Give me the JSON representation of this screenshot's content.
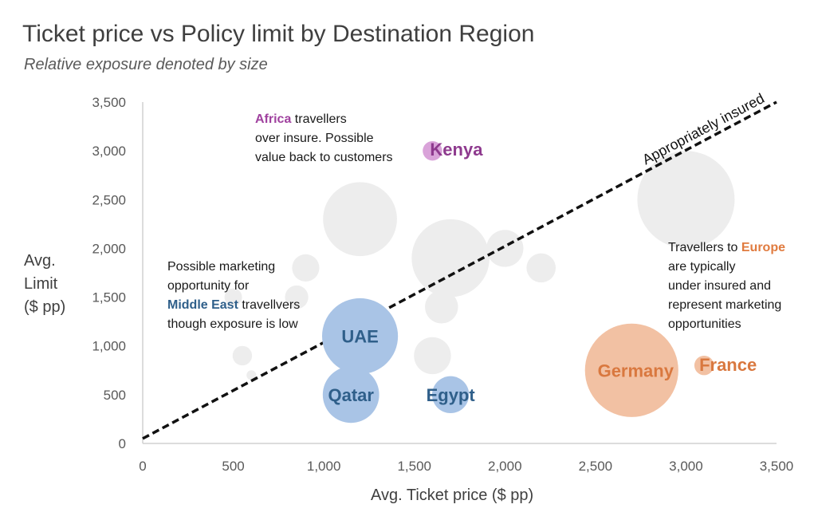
{
  "chart_data": {
    "type": "bubble",
    "title": "Ticket price vs Policy limit by Destination Region",
    "subtitle": "Relative exposure denoted by size",
    "xlabel": "Avg. Ticket price ($ pp)",
    "ylabel": [
      "Avg.",
      "Limit",
      "($ pp)"
    ],
    "xlim": [
      0,
      3500
    ],
    "ylim": [
      0,
      3500
    ],
    "x_ticks": [
      "0",
      "500",
      "1,000",
      "1,500",
      "2,000",
      "2,500",
      "3,000",
      "3,500"
    ],
    "y_ticks": [
      "0",
      "500",
      "1,000",
      "1,500",
      "2,000",
      "2,500",
      "3,000",
      "3,500"
    ],
    "grid": false,
    "colors": {
      "background_bubble": "#ededed",
      "africa": "#d9a3d9",
      "africa_text": "#8e3a8e",
      "middle_east": "#a9c4e6",
      "middle_east_text": "#2f5f8a",
      "europe": "#f2c1a3",
      "europe_text": "#d9783f"
    },
    "reference_line": {
      "label": "Appropriately insured",
      "x": [
        0,
        3500
      ],
      "y": [
        50,
        3500
      ],
      "style": "dashed"
    },
    "background_points": [
      {
        "x": 1200,
        "y": 2300,
        "size": 3.8
      },
      {
        "x": 1700,
        "y": 1900,
        "size": 4.0
      },
      {
        "x": 2000,
        "y": 2000,
        "size": 1.9
      },
      {
        "x": 2200,
        "y": 1800,
        "size": 1.5
      },
      {
        "x": 1650,
        "y": 1400,
        "size": 1.7
      },
      {
        "x": 1600,
        "y": 900,
        "size": 1.9
      },
      {
        "x": 900,
        "y": 1800,
        "size": 1.4
      },
      {
        "x": 850,
        "y": 1500,
        "size": 1.2
      },
      {
        "x": 550,
        "y": 900,
        "size": 1.0
      },
      {
        "x": 600,
        "y": 700,
        "size": 0.5
      },
      {
        "x": 3000,
        "y": 2500,
        "size": 5.0
      },
      {
        "x": 500,
        "y": 1500,
        "size": 0.9
      }
    ],
    "series": [
      {
        "name": "Kenya",
        "region": "Africa",
        "x": 1600,
        "y": 3000,
        "size": 1.0
      },
      {
        "name": "UAE",
        "region": "Middle East",
        "x": 1200,
        "y": 1100,
        "size": 3.9
      },
      {
        "name": "Qatar",
        "region": "Middle East",
        "x": 1150,
        "y": 500,
        "size": 2.9
      },
      {
        "name": "Egypt",
        "region": "Middle East",
        "x": 1700,
        "y": 500,
        "size": 1.9
      },
      {
        "name": "Germany",
        "region": "Europe",
        "x": 2700,
        "y": 750,
        "size": 4.8
      },
      {
        "name": "France",
        "region": "Europe",
        "x": 3100,
        "y": 800,
        "size": 1.0
      }
    ]
  },
  "annotations": {
    "africa": {
      "highlight": "Africa",
      "line1_rest": " travellers",
      "line2": "over insure. Possible",
      "line3": "value back to customers"
    },
    "middle_east": {
      "line1": "Possible marketing",
      "line2": "opportunity for",
      "highlight": "Middle East",
      "line3_rest": " travellvers",
      "line4": "though exposure is low"
    },
    "europe": {
      "line1_pre": "Travellers to ",
      "highlight": "Europe",
      "line2": "are typically",
      "line3": "under insured and",
      "line4": "represent marketing",
      "line5": "opportunities"
    }
  }
}
